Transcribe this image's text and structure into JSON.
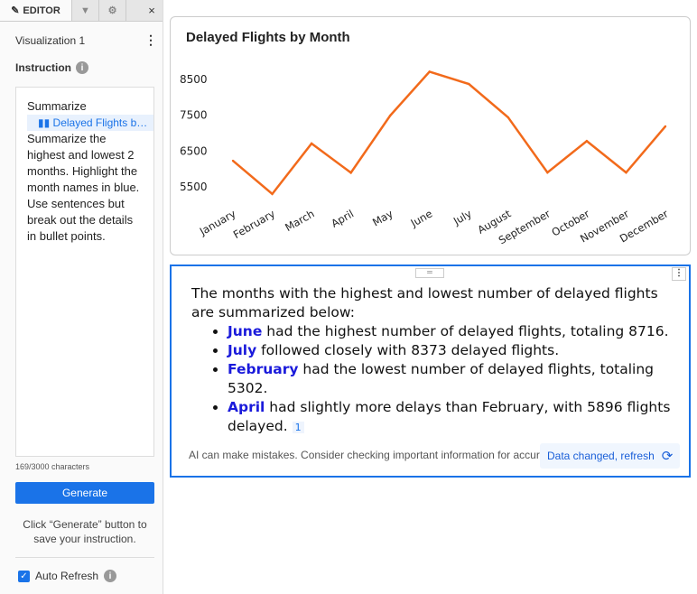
{
  "editor": {
    "tab_label": "EDITOR",
    "close": "×",
    "vis_name": "Visualization 1",
    "instruction_label": "Instruction",
    "instruction_prefix": "Summarize",
    "chip_label": "Delayed Flights b…",
    "instruction_text": "Summarize the highest and lowest 2 months. Highlight the month names in blue. Use sentences but break out the details in bullet points.",
    "char_count": "169/3000 characters",
    "generate": "Generate",
    "hint": "Click “Generate” button to save your instruction.",
    "auto_refresh": "Auto Refresh"
  },
  "summary": {
    "intro": "The months with the highest and lowest number of delayed flights are summarized below:",
    "bullets": [
      {
        "month": "June",
        "text": " had the highest number of delayed flights, totaling 8716."
      },
      {
        "month": "July",
        "text": " followed closely with 8373 delayed flights."
      },
      {
        "month": "February",
        "text": " had the lowest number of delayed flights, totaling 5302."
      },
      {
        "month": "April",
        "text": " had slightly more delays than February, with 5896 flights delayed."
      }
    ],
    "ref": "1",
    "disclaimer": "AI can make mistakes. Consider checking important information for accuracy.",
    "data_changed": "Data changed, refresh"
  },
  "chart_data": {
    "type": "line",
    "title": "Delayed Flights by Month",
    "categories": [
      "January",
      "February",
      "March",
      "April",
      "May",
      "June",
      "July",
      "August",
      "September",
      "October",
      "November",
      "December"
    ],
    "values": [
      6230,
      5302,
      6710,
      5896,
      7490,
      8716,
      8373,
      7440,
      5900,
      6780,
      5900,
      7190
    ],
    "yticks": [
      5500,
      6500,
      7500,
      8500
    ],
    "ylim": [
      4800,
      9000
    ],
    "color": "#f26a1b",
    "grid": false,
    "legend": "none"
  }
}
